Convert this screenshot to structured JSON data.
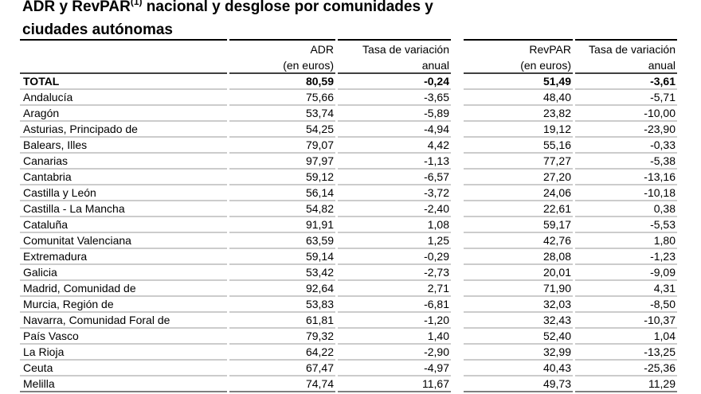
{
  "title": {
    "main": "ADR y RevPAR",
    "superscript": "(1)",
    "rest": " nacional y desglose por comunidades y",
    "line2": "ciudades autónomas"
  },
  "table": {
    "columns": [
      [
        "ADR",
        "(en euros)"
      ],
      [
        "Tasa de variación",
        "anual"
      ],
      [
        "RevPAR",
        "(en euros)"
      ],
      [
        "Tasa de variación",
        "anual"
      ]
    ],
    "rows": [
      [
        "TOTAL",
        "80,59",
        "-0,24",
        "51,49",
        "-3,61"
      ],
      [
        "Andalucía",
        "75,66",
        "-3,65",
        "48,40",
        "-5,71"
      ],
      [
        "Aragón",
        "53,74",
        "-5,89",
        "23,82",
        "-10,00"
      ],
      [
        "Asturias, Principado de",
        "54,25",
        "-4,94",
        "19,12",
        "-23,90"
      ],
      [
        "Balears, Illes",
        "79,07",
        "4,42",
        "55,16",
        "-0,33"
      ],
      [
        "Canarias",
        "97,97",
        "-1,13",
        "77,27",
        "-5,38"
      ],
      [
        "Cantabria",
        "59,12",
        "-6,57",
        "27,20",
        "-13,16"
      ],
      [
        "Castilla y León",
        "56,14",
        "-3,72",
        "24,06",
        "-10,18"
      ],
      [
        "Castilla - La Mancha",
        "54,82",
        "-2,40",
        "22,61",
        "0,38"
      ],
      [
        "Cataluña",
        "91,91",
        "1,08",
        "59,17",
        "-5,53"
      ],
      [
        "Comunitat Valenciana",
        "63,59",
        "1,25",
        "42,76",
        "1,80"
      ],
      [
        "Extremadura",
        "59,14",
        "-0,29",
        "28,08",
        "-1,23"
      ],
      [
        "Galicia",
        "53,42",
        "-2,73",
        "20,01",
        "-9,09"
      ],
      [
        "Madrid, Comunidad de",
        "92,64",
        "2,71",
        "71,90",
        "4,31"
      ],
      [
        "Murcia, Región de",
        "53,83",
        "-6,81",
        "32,03",
        "-8,50"
      ],
      [
        "Navarra, Comunidad Foral de",
        "61,81",
        "-1,20",
        "32,43",
        "-10,37"
      ],
      [
        "País Vasco",
        "79,32",
        "1,40",
        "52,40",
        "1,04"
      ],
      [
        "La Rioja",
        "64,22",
        "-2,90",
        "32,99",
        "-13,25"
      ],
      [
        "Ceuta",
        "67,47",
        "-4,97",
        "40,43",
        "-25,36"
      ],
      [
        "Melilla",
        "74,74",
        "11,67",
        "49,73",
        "11,29"
      ]
    ]
  }
}
